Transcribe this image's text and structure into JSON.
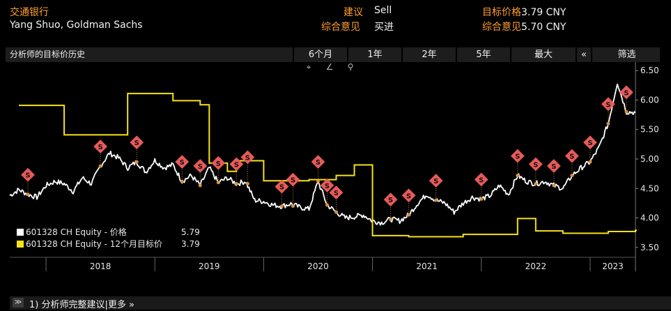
{
  "header": {
    "company": "交通银行",
    "analyst": "Yang Shuo, Goldman Sachs",
    "rec_label": "建议",
    "rec_value": "Sell",
    "consensus_label": "综合意见",
    "consensus_value": "买进",
    "target_label": "目标价格",
    "target_value": "3.79 CNY",
    "cons_target_label": "综合意见",
    "cons_target_value": "5.70 CNY"
  },
  "tabs": {
    "history": "分析师的目标价历史",
    "items": [
      "6个月",
      "1年",
      "2年",
      "5年",
      "最大",
      "«",
      "筛选"
    ]
  },
  "tools": [
    "⌖",
    "∠",
    "⚲"
  ],
  "legend": [
    {
      "label": "601328 CH Equity - 价格",
      "value": "5.79",
      "color": "#ffffff"
    },
    {
      "label": "601328 CH Equity - 12个月目标价",
      "value": "3.79",
      "color": "#f5e21b"
    }
  ],
  "footer": {
    "chevron": "≫",
    "text": "1) 分析师完整建议|更多 »"
  },
  "chart_data": {
    "type": "line",
    "y_range": [
      3.45,
      6.55
    ],
    "y_ticks": [
      "6.50",
      "6.00",
      "5.50",
      "5.00",
      "4.50",
      "4.00",
      "3.50"
    ],
    "x_labels": [
      "2018",
      "2019",
      "2020",
      "2021",
      "2022",
      "2023"
    ],
    "x_range": [
      "2017-09",
      "2023-06"
    ],
    "series": [
      {
        "name": "601328 CH Equity - 价格",
        "color": "#ffffff",
        "points": [
          [
            "2017-09",
            4.38
          ],
          [
            "2017-10",
            4.48
          ],
          [
            "2017-11",
            4.4
          ],
          [
            "2017-12",
            4.35
          ],
          [
            "2018-01",
            4.55
          ],
          [
            "2018-02",
            4.62
          ],
          [
            "2018-03",
            4.58
          ],
          [
            "2018-04",
            4.45
          ],
          [
            "2018-05",
            4.68
          ],
          [
            "2018-06",
            4.58
          ],
          [
            "2018-07",
            4.88
          ],
          [
            "2018-08",
            5.1
          ],
          [
            "2018-09",
            5.02
          ],
          [
            "2018-10",
            4.85
          ],
          [
            "2018-11",
            4.95
          ],
          [
            "2018-12",
            4.78
          ],
          [
            "2019-01",
            4.98
          ],
          [
            "2019-02",
            4.85
          ],
          [
            "2019-03",
            4.9
          ],
          [
            "2019-04",
            4.62
          ],
          [
            "2019-05",
            4.72
          ],
          [
            "2019-06",
            4.55
          ],
          [
            "2019-07",
            4.85
          ],
          [
            "2019-08",
            4.6
          ],
          [
            "2019-09",
            4.68
          ],
          [
            "2019-10",
            4.58
          ],
          [
            "2019-11",
            4.62
          ],
          [
            "2019-12",
            4.3
          ],
          [
            "2020-01",
            4.28
          ],
          [
            "2020-02",
            4.22
          ],
          [
            "2020-03",
            4.2
          ],
          [
            "2020-04",
            4.24
          ],
          [
            "2020-05",
            4.18
          ],
          [
            "2020-06",
            4.15
          ],
          [
            "2020-07",
            4.62
          ],
          [
            "2020-08",
            4.22
          ],
          [
            "2020-09",
            4.1
          ],
          [
            "2020-10",
            4.0
          ],
          [
            "2020-11",
            4.02
          ],
          [
            "2020-12",
            4.05
          ],
          [
            "2021-01",
            3.95
          ],
          [
            "2021-02",
            3.92
          ],
          [
            "2021-03",
            3.98
          ],
          [
            "2021-04",
            3.95
          ],
          [
            "2021-05",
            4.05
          ],
          [
            "2021-06",
            4.25
          ],
          [
            "2021-07",
            4.4
          ],
          [
            "2021-08",
            4.3
          ],
          [
            "2021-09",
            4.25
          ],
          [
            "2021-10",
            4.1
          ],
          [
            "2021-11",
            4.25
          ],
          [
            "2021-12",
            4.35
          ],
          [
            "2022-01",
            4.32
          ],
          [
            "2022-02",
            4.38
          ],
          [
            "2022-03",
            4.55
          ],
          [
            "2022-04",
            4.4
          ],
          [
            "2022-05",
            4.72
          ],
          [
            "2022-06",
            4.62
          ],
          [
            "2022-07",
            4.58
          ],
          [
            "2022-08",
            4.62
          ],
          [
            "2022-09",
            4.55
          ],
          [
            "2022-10",
            4.5
          ],
          [
            "2022-11",
            4.72
          ],
          [
            "2022-12",
            4.85
          ],
          [
            "2023-01",
            4.95
          ],
          [
            "2023-02",
            5.2
          ],
          [
            "2023-03",
            5.6
          ],
          [
            "2023-04",
            6.3
          ],
          [
            "2023-05",
            5.8
          ],
          [
            "2023-06",
            5.79
          ]
        ]
      },
      {
        "name": "601328 CH Equity - 12个月目标价",
        "color": "#f5e21b",
        "step": true,
        "points": [
          [
            "2017-10",
            5.91
          ],
          [
            "2018-03",
            5.41
          ],
          [
            "2018-10",
            6.11
          ],
          [
            "2019-03",
            5.99
          ],
          [
            "2019-06",
            5.92
          ],
          [
            "2019-07",
            4.93
          ],
          [
            "2019-09",
            4.79
          ],
          [
            "2019-10",
            4.97
          ],
          [
            "2020-01",
            4.63
          ],
          [
            "2020-06",
            4.65
          ],
          [
            "2020-09",
            4.72
          ],
          [
            "2020-11",
            4.9
          ],
          [
            "2021-01",
            3.7
          ],
          [
            "2021-05",
            3.68
          ],
          [
            "2021-11",
            3.72
          ],
          [
            "2022-05",
            3.99
          ],
          [
            "2022-07",
            3.78
          ],
          [
            "2022-10",
            3.74
          ],
          [
            "2023-03",
            3.77
          ],
          [
            "2023-06",
            3.79
          ]
        ]
      }
    ],
    "recommendation_markers": {
      "glyph": "S",
      "color": "#e85a5a",
      "dates": [
        "2017-11",
        "2018-07",
        "2018-11",
        "2019-04",
        "2019-06",
        "2019-08",
        "2019-10",
        "2019-10",
        "2020-03",
        "2020-03",
        "2020-07",
        "2020-08",
        "2020-09",
        "2021-03",
        "2021-05",
        "2021-08",
        "2022-01",
        "2022-05",
        "2022-07",
        "2022-09",
        "2022-11",
        "2023-01",
        "2023-03",
        "2023-05"
      ]
    }
  }
}
